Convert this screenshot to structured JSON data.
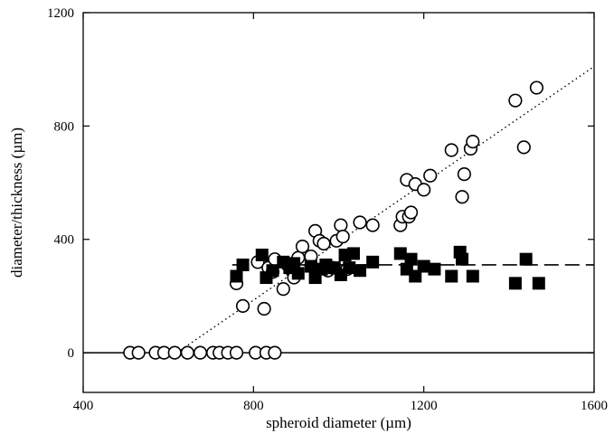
{
  "chart_data": {
    "type": "scatter",
    "title": "",
    "xlabel": "spheroid diameter (µm)",
    "ylabel": "diameter/thickness (µm)",
    "xlim": [
      400,
      1600
    ],
    "ylim": [
      -140,
      1200
    ],
    "x_ticks": [
      400,
      800,
      1200,
      1600
    ],
    "y_ticks": [
      0,
      400,
      800,
      1200
    ],
    "x_tick_labels": [
      "400",
      "800",
      "1200",
      "1600"
    ],
    "y_tick_labels": [
      "0",
      "400",
      "800",
      "1200"
    ],
    "grid": false,
    "legend": "none",
    "series": [
      {
        "marker": "open-circle",
        "color": "#000000",
        "points": [
          [
            510,
            0
          ],
          [
            530,
            0
          ],
          [
            570,
            0
          ],
          [
            590,
            0
          ],
          [
            615,
            0
          ],
          [
            645,
            0
          ],
          [
            675,
            0
          ],
          [
            705,
            0
          ],
          [
            720,
            0
          ],
          [
            740,
            0
          ],
          [
            760,
            0
          ],
          [
            805,
            0
          ],
          [
            830,
            0
          ],
          [
            850,
            0
          ],
          [
            760,
            245
          ],
          [
            775,
            165
          ],
          [
            825,
            155
          ],
          [
            810,
            320
          ],
          [
            835,
            300
          ],
          [
            845,
            285
          ],
          [
            850,
            330
          ],
          [
            870,
            225
          ],
          [
            880,
            310
          ],
          [
            890,
            290
          ],
          [
            895,
            265
          ],
          [
            905,
            335
          ],
          [
            915,
            375
          ],
          [
            935,
            340
          ],
          [
            945,
            430
          ],
          [
            955,
            395
          ],
          [
            965,
            385
          ],
          [
            975,
            290
          ],
          [
            985,
            300
          ],
          [
            995,
            395
          ],
          [
            1005,
            450
          ],
          [
            1010,
            410
          ],
          [
            1020,
            295
          ],
          [
            1050,
            460
          ],
          [
            1080,
            450
          ],
          [
            1145,
            450
          ],
          [
            1150,
            480
          ],
          [
            1160,
            610
          ],
          [
            1165,
            480
          ],
          [
            1170,
            495
          ],
          [
            1180,
            595
          ],
          [
            1200,
            575
          ],
          [
            1215,
            625
          ],
          [
            1265,
            715
          ],
          [
            1290,
            550
          ],
          [
            1295,
            630
          ],
          [
            1310,
            720
          ],
          [
            1315,
            745
          ],
          [
            1415,
            890
          ],
          [
            1435,
            725
          ],
          [
            1465,
            935
          ]
        ]
      },
      {
        "marker": "filled-square",
        "color": "#000000",
        "points": [
          [
            760,
            270
          ],
          [
            775,
            310
          ],
          [
            820,
            345
          ],
          [
            830,
            265
          ],
          [
            845,
            290
          ],
          [
            870,
            320
          ],
          [
            885,
            300
          ],
          [
            895,
            315
          ],
          [
            905,
            280
          ],
          [
            935,
            305
          ],
          [
            945,
            265
          ],
          [
            960,
            295
          ],
          [
            970,
            310
          ],
          [
            990,
            300
          ],
          [
            1005,
            275
          ],
          [
            1015,
            345
          ],
          [
            1025,
            300
          ],
          [
            1035,
            350
          ],
          [
            1050,
            290
          ],
          [
            1080,
            320
          ],
          [
            1145,
            350
          ],
          [
            1160,
            295
          ],
          [
            1170,
            330
          ],
          [
            1180,
            270
          ],
          [
            1200,
            305
          ],
          [
            1225,
            295
          ],
          [
            1265,
            270
          ],
          [
            1285,
            355
          ],
          [
            1290,
            330
          ],
          [
            1315,
            270
          ],
          [
            1415,
            245
          ],
          [
            1440,
            330
          ],
          [
            1470,
            245
          ]
        ]
      }
    ],
    "reference_lines": [
      {
        "style": "dotted",
        "x": [
          620,
          1600
        ],
        "y": [
          0,
          1010
        ]
      },
      {
        "style": "dashed",
        "x": [
          750,
          1600
        ],
        "y": [
          310,
          310
        ]
      },
      {
        "style": "solid",
        "x": [
          400,
          1600
        ],
        "y": [
          0,
          0
        ]
      }
    ]
  }
}
